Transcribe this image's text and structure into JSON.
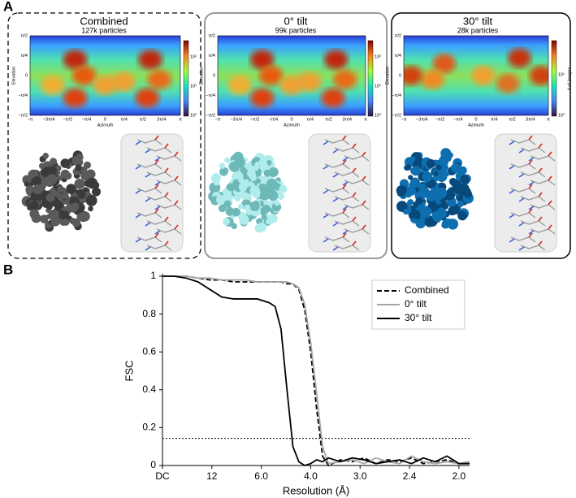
{
  "panel_labels": [
    "A",
    "B"
  ],
  "heatmap_axes": {
    "ylabel": "Elevation",
    "xlabel": "Azimuth",
    "yticks": [
      "π/2",
      "π/4",
      "0",
      "−π/4",
      "−π/2"
    ],
    "xticks": [
      "−π",
      "−3π/4",
      "−π/2",
      "−π/4",
      "0",
      "π/4",
      "π/2",
      "3π/4",
      "π"
    ]
  },
  "panels": [
    {
      "title": "Combined",
      "subtitle": "127k particles",
      "colorbar_ticks": [
        "10²",
        "10¹",
        "10⁰"
      ]
    },
    {
      "title": "0° tilt",
      "subtitle": "99k particles",
      "colorbar_ticks": [
        "10²",
        "10¹",
        "10⁰"
      ]
    },
    {
      "title": "30° tilt",
      "subtitle": "28k particles",
      "colorbar_ticks": [
        "10¹",
        "10⁰"
      ],
      "colorbar_label": "# of images"
    }
  ],
  "chart_data": {
    "type": "line",
    "xlabel": "Resolution (Å)",
    "ylabel": "FSC",
    "xlim": [
      0,
      0.518
    ],
    "ylim": [
      0,
      1
    ],
    "xticks": [
      {
        "value": 0,
        "label": "DC"
      },
      {
        "value": 0.0833,
        "label": "12"
      },
      {
        "value": 0.1667,
        "label": "6.0"
      },
      {
        "value": 0.25,
        "label": "4.0"
      },
      {
        "value": 0.3333,
        "label": "3.0"
      },
      {
        "value": 0.4167,
        "label": "2.4"
      },
      {
        "value": 0.5,
        "label": "2.0"
      }
    ],
    "yticks": [
      0,
      0.2,
      0.4,
      0.6,
      0.8,
      1
    ],
    "threshold": 0.143,
    "legend": "upper right",
    "x": [
      0,
      0.02,
      0.04,
      0.06,
      0.08,
      0.1,
      0.12,
      0.14,
      0.16,
      0.18,
      0.19,
      0.2,
      0.21,
      0.22,
      0.23,
      0.24,
      0.25,
      0.26,
      0.27,
      0.28,
      0.3,
      0.32,
      0.34,
      0.36,
      0.38,
      0.4,
      0.42,
      0.44,
      0.46,
      0.48,
      0.5,
      0.518
    ],
    "series": [
      {
        "name": "Combined",
        "color": "#000000",
        "dash": true,
        "values": [
          1,
          1,
          1,
          0.99,
          0.98,
          0.98,
          0.97,
          0.97,
          0.97,
          0.97,
          0.97,
          0.97,
          0.96,
          0.96,
          0.93,
          0.82,
          0.6,
          0.3,
          0.05,
          0,
          0.03,
          0.02,
          0.04,
          0.01,
          0.03,
          0.02,
          0.04,
          0.01,
          0.02,
          0.03,
          0.01,
          0.02
        ]
      },
      {
        "name": "0° tilt",
        "color": "#a6a6a6",
        "dash": false,
        "values": [
          1,
          1,
          1,
          0.99,
          0.99,
          0.98,
          0.98,
          0.98,
          0.97,
          0.97,
          0.97,
          0.97,
          0.97,
          0.96,
          0.94,
          0.85,
          0.65,
          0.38,
          0.1,
          0.01,
          0.02,
          0.03,
          0.01,
          0.04,
          0.02,
          0.01,
          0.05,
          0.02,
          0.01,
          0.02,
          0.01,
          0.02
        ]
      },
      {
        "name": "30° tilt",
        "color": "#000000",
        "dash": false,
        "values": [
          1,
          1,
          0.99,
          0.97,
          0.93,
          0.89,
          0.88,
          0.88,
          0.88,
          0.86,
          0.84,
          0.72,
          0.4,
          0.1,
          0.02,
          0,
          0.01,
          0.03,
          0.02,
          0.04,
          0.02,
          0.04,
          0.03,
          0.01,
          0.02,
          0.03,
          0.01,
          0.04,
          0.02,
          0.05,
          0.01,
          0.01
        ]
      }
    ]
  }
}
